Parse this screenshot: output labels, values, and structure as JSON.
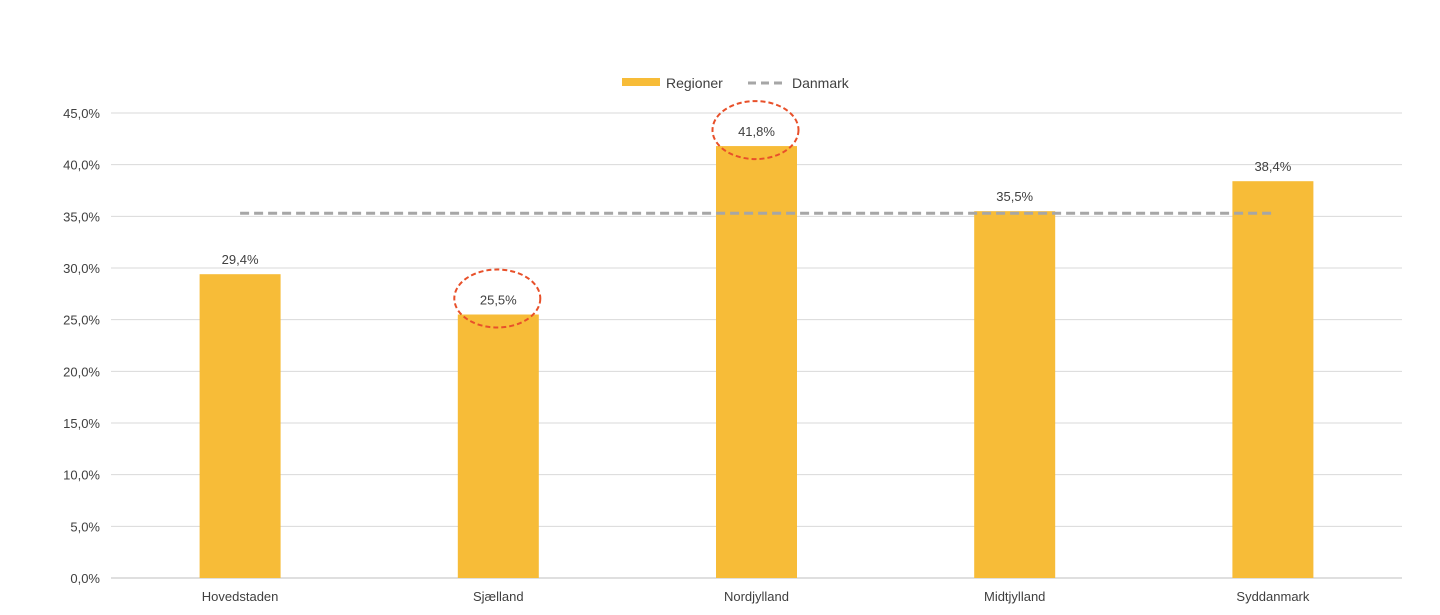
{
  "chart_data": {
    "type": "bar",
    "categories": [
      "Hovedstaden",
      "Sjælland",
      "Nordjylland",
      "Midtjylland",
      "Syddanmark"
    ],
    "series": [
      {
        "name": "Regioner",
        "type": "bar",
        "color": "#F7BC38",
        "values": [
          29.4,
          25.5,
          41.8,
          35.5,
          38.4
        ],
        "value_labels": [
          "29,4%",
          "25,5%",
          "41,8%",
          "35,5%",
          "38,4%"
        ]
      },
      {
        "name": "Danmark",
        "type": "line",
        "style": "dashed",
        "color": "#A6A6A6",
        "values": [
          35.3,
          35.3,
          35.3,
          35.3,
          35.3
        ]
      }
    ],
    "y_ticks": [
      "0,0%",
      "5,0%",
      "10,0%",
      "15,0%",
      "20,0%",
      "25,0%",
      "30,0%",
      "35,0%",
      "40,0%",
      "45,0%"
    ],
    "ylim": [
      0,
      45
    ],
    "grid": true,
    "legend_position": "top-center",
    "highlighted_categories": [
      "Sjælland",
      "Nordjylland"
    ],
    "highlight_color": "#E8502A"
  }
}
